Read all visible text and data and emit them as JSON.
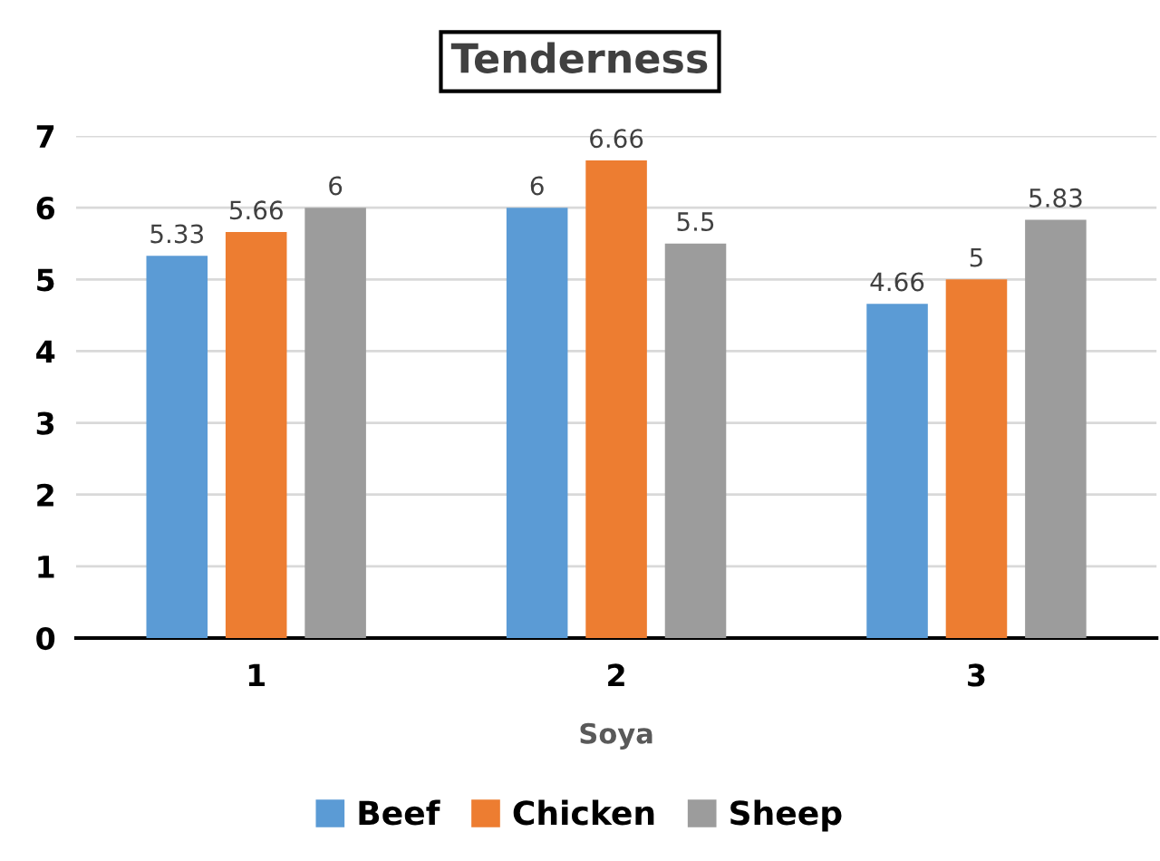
{
  "chart_data": {
    "type": "bar",
    "title": "Tenderness",
    "xlabel": "Soya",
    "categories": [
      "1",
      "2",
      "3"
    ],
    "series": [
      {
        "name": "Beef",
        "color": "#5b9bd5",
        "values": [
          5.33,
          6,
          4.66
        ]
      },
      {
        "name": "Chicken",
        "color": "#ed7d31",
        "values": [
          5.66,
          6.66,
          5
        ]
      },
      {
        "name": "Sheep",
        "color": "#9c9c9c",
        "values": [
          6,
          5.5,
          5.83
        ]
      }
    ],
    "ylim": [
      0,
      7
    ],
    "yticks": [
      0,
      1,
      2,
      3,
      4,
      5,
      6,
      7
    ],
    "grid": "y",
    "legend": "bottom",
    "data_labels": true
  }
}
